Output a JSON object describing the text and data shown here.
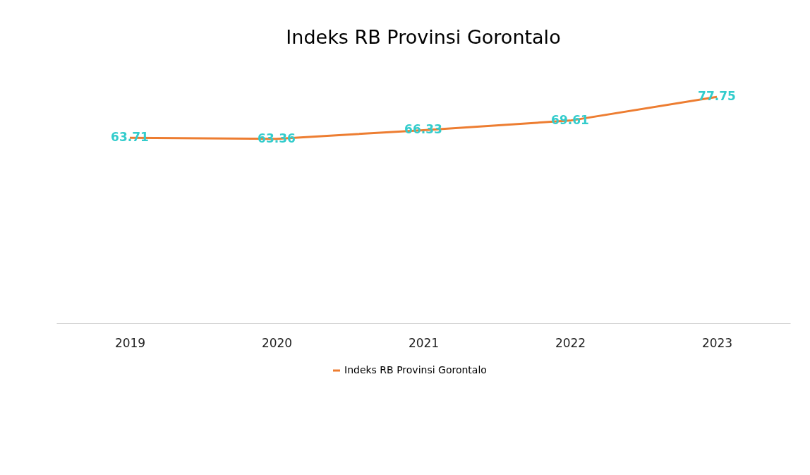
{
  "chart_data": {
    "type": "line",
    "title": "Indeks RB Provinsi Gorontalo",
    "categories": [
      "2019",
      "2020",
      "2021",
      "2022",
      "2023"
    ],
    "series": [
      {
        "name": "Indeks RB Provinsi Gorontalo",
        "color": "#ed7d31",
        "values": [
          63.71,
          63.36,
          66.33,
          69.61,
          77.75
        ]
      }
    ],
    "data_labels": true,
    "legend": "bottom",
    "grid": false,
    "marker": "none",
    "line_style": "solid"
  }
}
